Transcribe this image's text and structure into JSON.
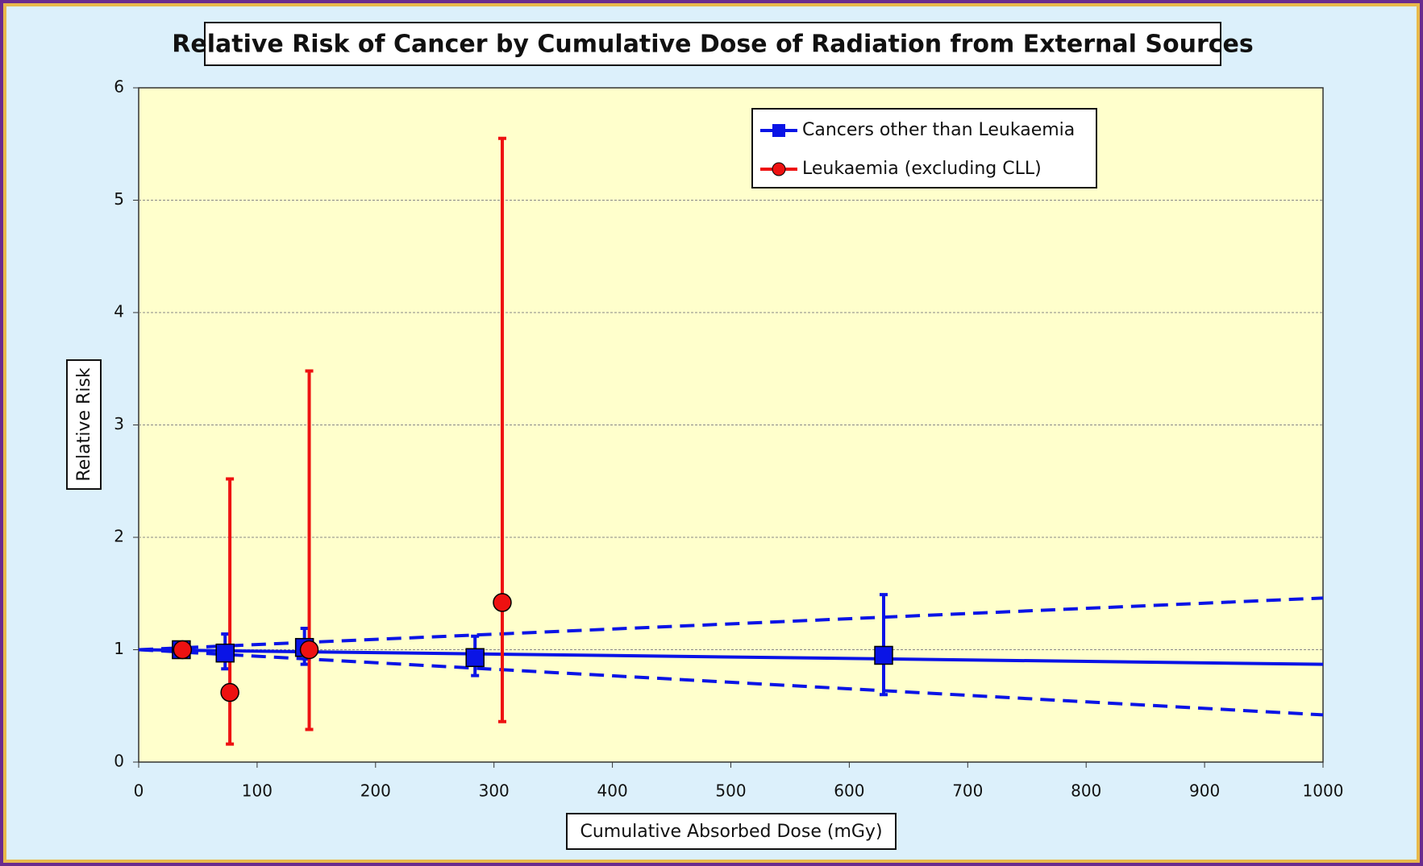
{
  "chart_data": {
    "type": "scatter",
    "title": "Relative Risk of Cancer by Cumulative Dose of Radiation from External Sources",
    "x_label": "Cumulative Absorbed Dose (mGy)",
    "y_label": "Relative Risk",
    "xlim": [
      0,
      1000
    ],
    "xticks": [
      0,
      100,
      200,
      300,
      400,
      500,
      600,
      700,
      800,
      900,
      1000
    ],
    "ylim": [
      0,
      6
    ],
    "yticks": [
      0,
      1,
      2,
      3,
      4,
      5,
      6
    ],
    "grid": true,
    "legend": "top-right",
    "series": [
      {
        "name": "Cancers other than Leukaemia",
        "color": "#0a14e6",
        "marker": "square",
        "x": [
          36,
          73,
          140,
          284,
          629
        ],
        "values": [
          1.0,
          0.97,
          1.02,
          0.93,
          0.95
        ],
        "err_low": [
          null,
          0.83,
          0.87,
          0.77,
          0.6
        ],
        "err_high": [
          null,
          1.14,
          1.19,
          1.12,
          1.49
        ]
      },
      {
        "name": "Leukaemia (excluding CLL)",
        "color": "#ee1111",
        "marker": "circle",
        "x": [
          37,
          77,
          144,
          307
        ],
        "values": [
          1.0,
          0.62,
          1.0,
          1.42
        ],
        "err_low": [
          null,
          0.16,
          0.29,
          0.36
        ],
        "err_high": [
          null,
          2.52,
          3.48,
          5.55
        ]
      }
    ],
    "lines": [
      {
        "color": "#0a14e6",
        "dashed": false,
        "x": [
          0,
          1000
        ],
        "values": [
          1.0,
          0.87
        ]
      },
      {
        "color": "#0a14e6",
        "dashed": true,
        "x": [
          0,
          1000
        ],
        "values": [
          1.0,
          1.46
        ]
      },
      {
        "color": "#0a14e6",
        "dashed": true,
        "x": [
          0,
          1000
        ],
        "values": [
          1.0,
          0.42
        ]
      }
    ]
  }
}
